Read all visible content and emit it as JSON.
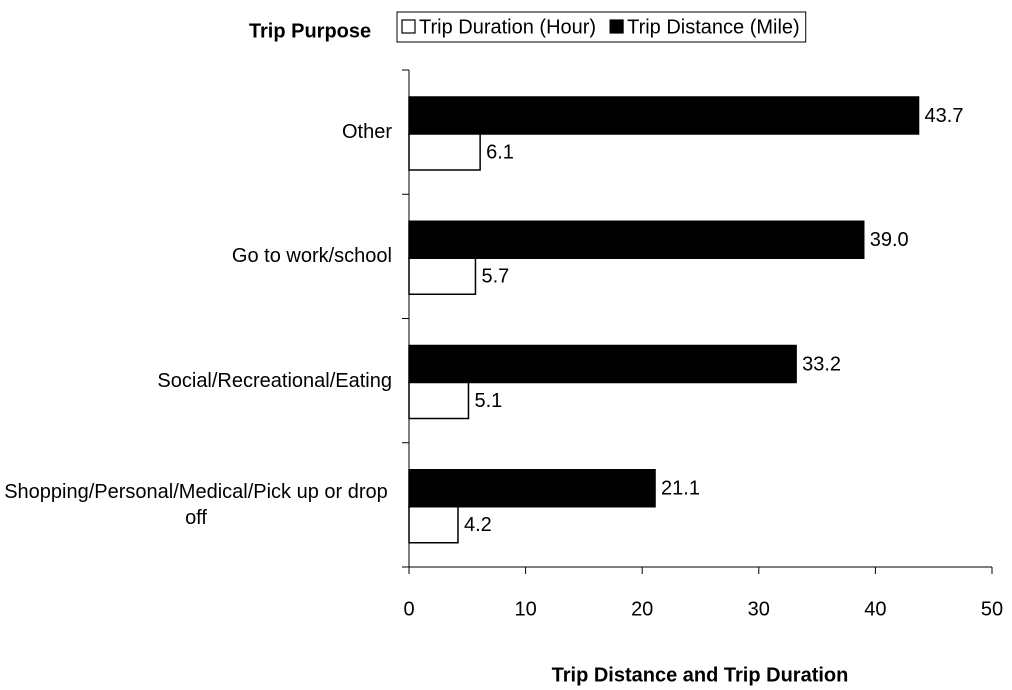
{
  "chart_data": {
    "type": "hbar",
    "y_title": "Trip Purpose",
    "x_title": "Trip Distance and Trip Duration",
    "categories": [
      "Other",
      "Go to work/school",
      "Social/Recreational/Eating",
      "Shopping/Personal/Medical/Pick up or drop off"
    ],
    "series": [
      {
        "name": "Trip Duration (Hour)",
        "color": "#ffffff",
        "values": [
          6.1,
          5.7,
          5.1,
          4.2
        ],
        "value_labels": [
          "6.1",
          "5.7",
          "5.1",
          "4.2"
        ]
      },
      {
        "name": "Trip Distance (Mile)",
        "color": "#000000",
        "values": [
          43.7,
          39.0,
          33.2,
          21.1
        ],
        "value_labels": [
          "43.7",
          "39.0",
          "33.2",
          "21.1"
        ]
      }
    ],
    "xlim": [
      0,
      50
    ],
    "xticks": [
      0,
      10,
      20,
      30,
      40,
      50
    ],
    "legend": "top"
  }
}
